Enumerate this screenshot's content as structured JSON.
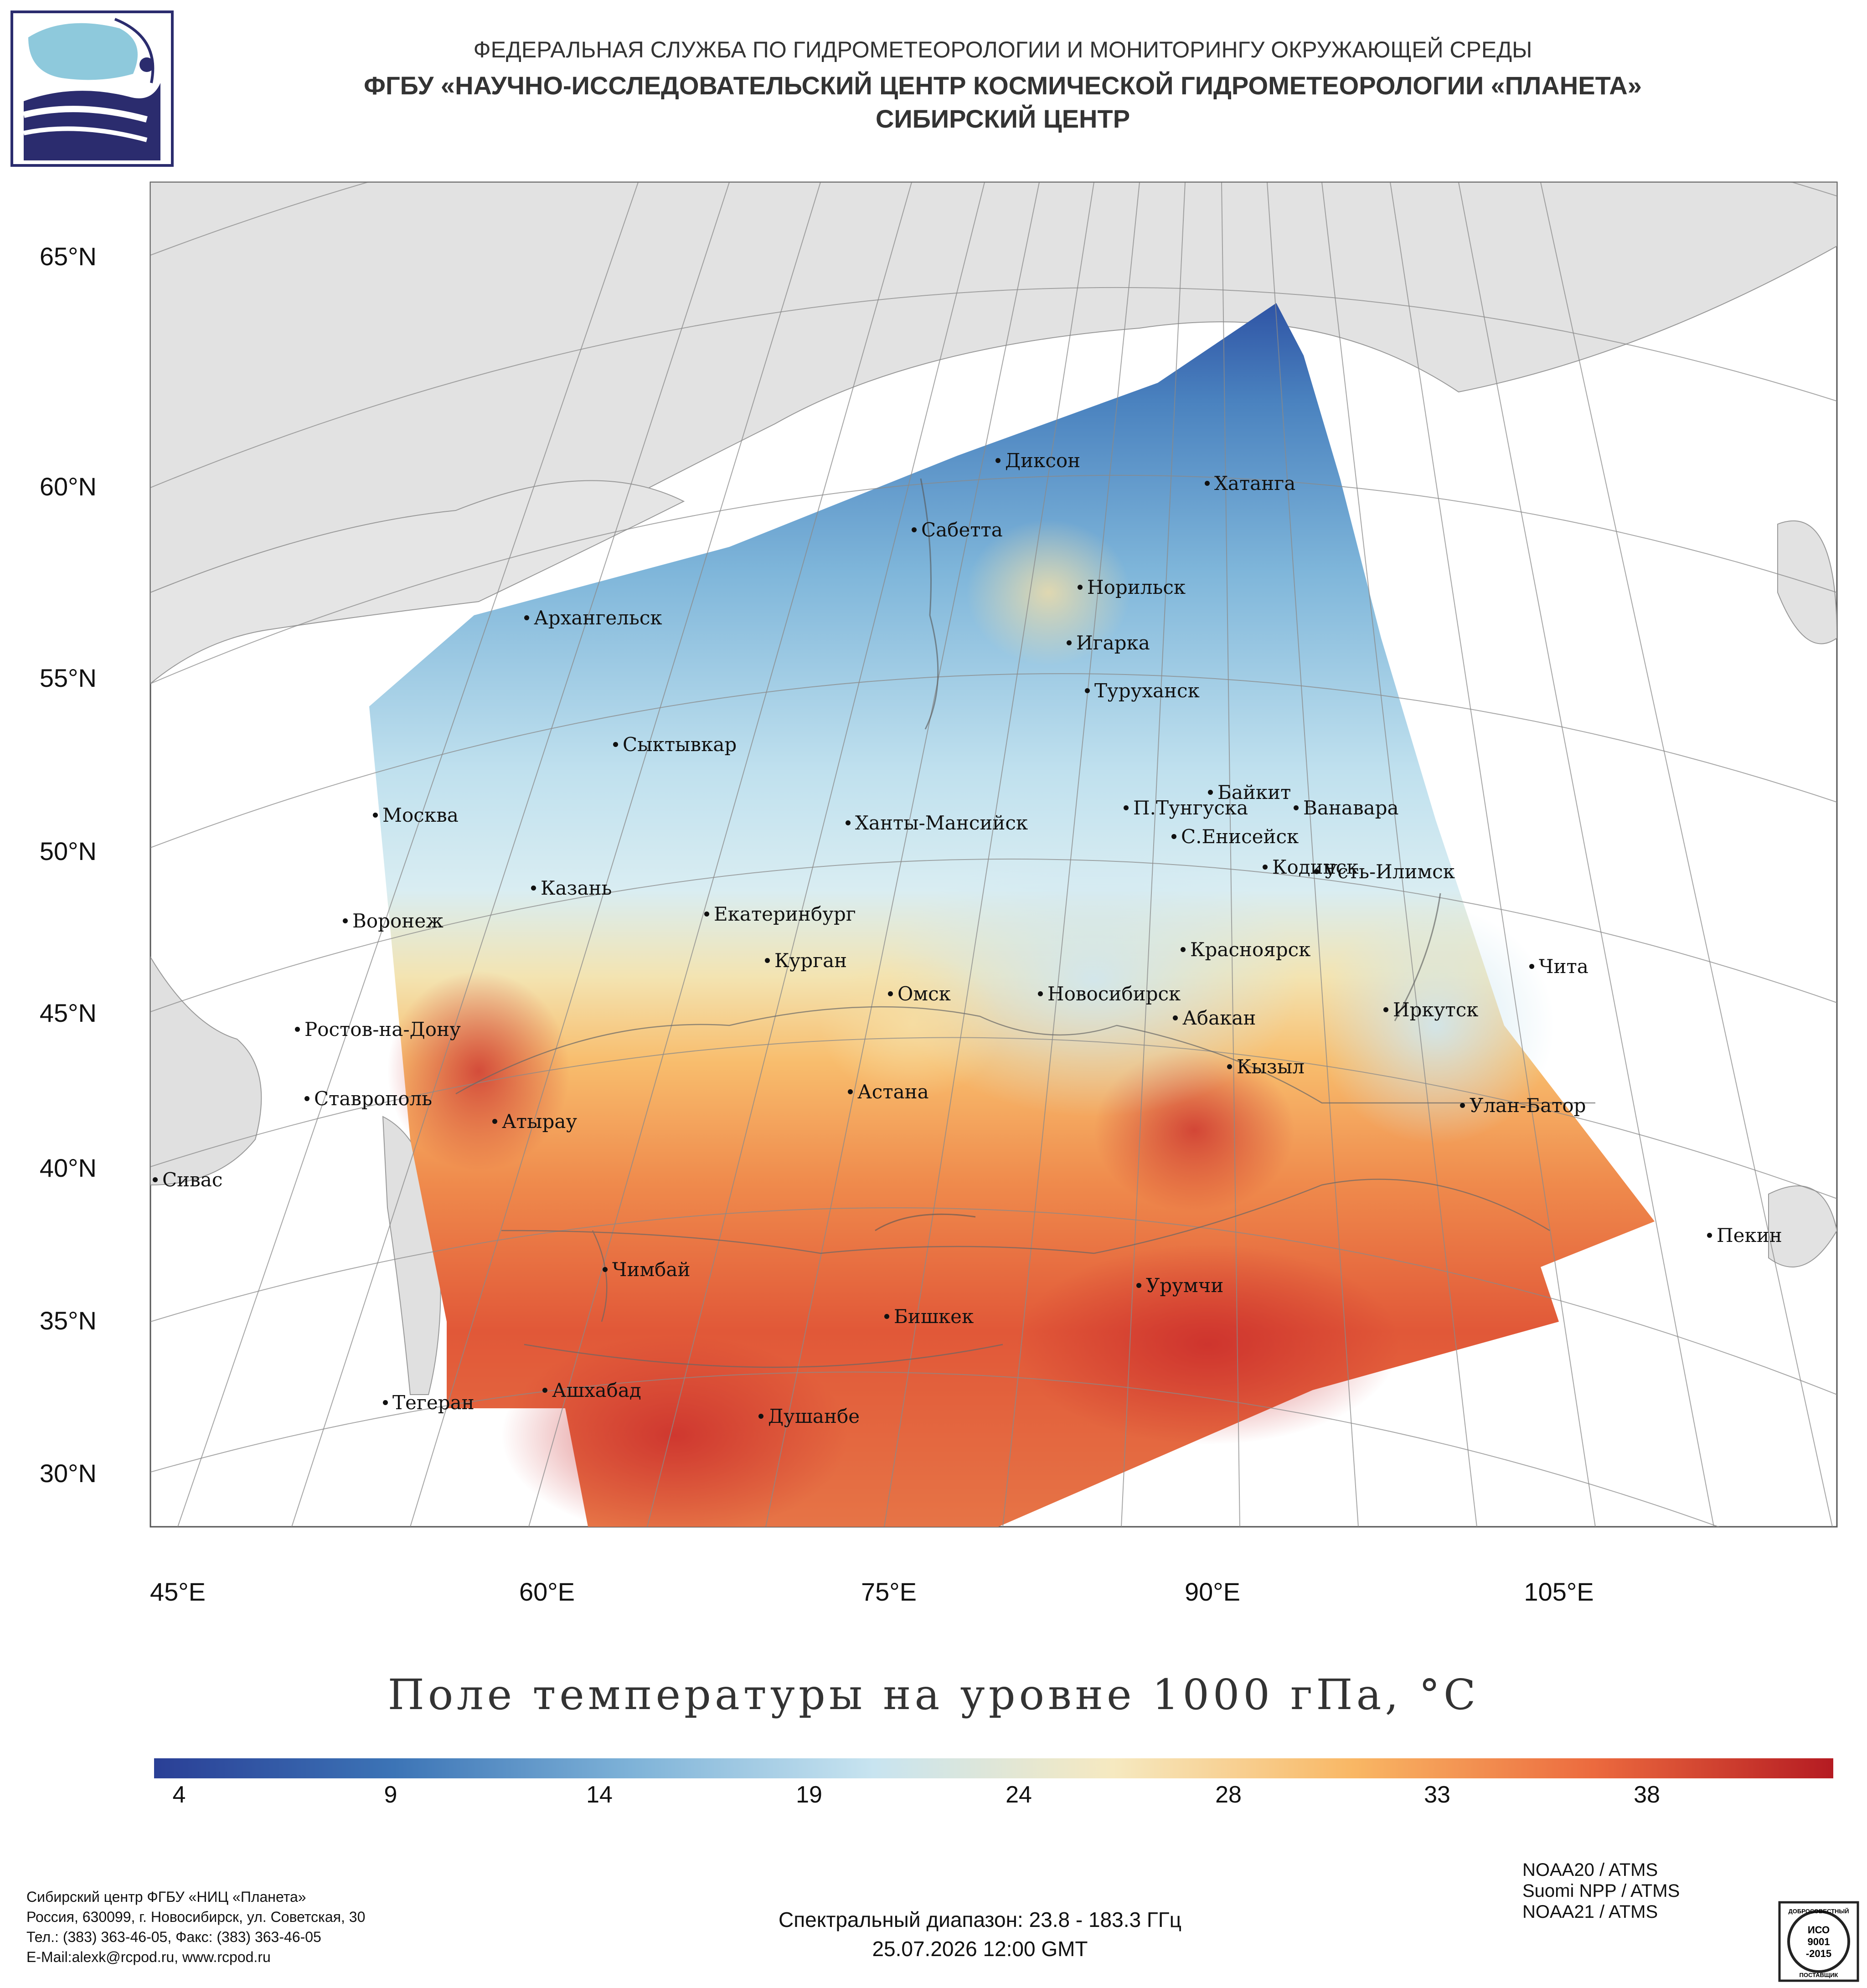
{
  "header": {
    "line1": "ФЕДЕРАЛЬНАЯ СЛУЖБА ПО ГИДРОМЕТЕОРОЛОГИИ И МОНИТОРИНГУ ОКРУЖАЮЩЕЙ СРЕДЫ",
    "line2": "ФГБУ «НАУЧНО-ИССЛЕДОВАТЕЛЬСКИЙ ЦЕНТР КОСМИЧЕСКОЙ ГИДРОМЕТЕОРОЛОГИИ «ПЛАНЕТА»",
    "line3": "СИБИРСКИЙ ЦЕНТР"
  },
  "map": {
    "lat_labels": [
      "65°N",
      "60°N",
      "55°N",
      "50°N",
      "45°N",
      "40°N",
      "35°N",
      "30°N"
    ],
    "lon_labels": [
      "45°E",
      "60°E",
      "75°E",
      "90°E",
      "105°E"
    ],
    "cities": [
      {
        "name": "Диксон"
      },
      {
        "name": "Хатанга"
      },
      {
        "name": "Сабетта"
      },
      {
        "name": "Норильск"
      },
      {
        "name": "Архангельск"
      },
      {
        "name": "Игарка"
      },
      {
        "name": "Туруханск"
      },
      {
        "name": "Сыктывкар"
      },
      {
        "name": "Байкит"
      },
      {
        "name": "П.Тунгуска"
      },
      {
        "name": "Ванавара"
      },
      {
        "name": "Москва"
      },
      {
        "name": "Ханты-Мансийск"
      },
      {
        "name": "С.Енисейск"
      },
      {
        "name": "Кодинск"
      },
      {
        "name": "Усть-Илимск"
      },
      {
        "name": "Казань"
      },
      {
        "name": "Екатеринбург"
      },
      {
        "name": "Воронеж"
      },
      {
        "name": "Красноярск"
      },
      {
        "name": "Курган"
      },
      {
        "name": "Чита"
      },
      {
        "name": "Омск"
      },
      {
        "name": "Новосибирск"
      },
      {
        "name": "Иркутск"
      },
      {
        "name": "Абакан"
      },
      {
        "name": "Ростов-на-Дону"
      },
      {
        "name": "Кызыл"
      },
      {
        "name": "Астана"
      },
      {
        "name": "Ставрополь"
      },
      {
        "name": "Улан-Батор"
      },
      {
        "name": "Атырау"
      },
      {
        "name": "Сивас"
      },
      {
        "name": "Пекин"
      },
      {
        "name": "Чимбай"
      },
      {
        "name": "Урумчи"
      },
      {
        "name": "Бишкек"
      },
      {
        "name": "Ашхабад"
      },
      {
        "name": "Тегеран"
      },
      {
        "name": "Душанбе"
      }
    ]
  },
  "chart_title": "Поле температуры на уровне 1000 гПа, °С",
  "colorbar": {
    "ticks": [
      "4",
      "9",
      "14",
      "19",
      "24",
      "28",
      "33",
      "38"
    ],
    "colors": [
      "#2a3f96",
      "#3c74b6",
      "#7fb3d8",
      "#c8e4f0",
      "#f6e9c0",
      "#f9b764",
      "#ec6a3e",
      "#b51b22"
    ]
  },
  "footer_left": {
    "line1": "Сибирский центр ФГБУ «НИЦ «Планета»",
    "line2": "Россия, 630099, г. Новосибирск, ул. Советская, 30",
    "line3": "Тел.: (383) 363-46-05, Факс: (383) 363-46-05",
    "line4": "E-Mail:alexk@rcpod.ru, www.rcpod.ru"
  },
  "footer_center": {
    "spectral": "Спектральный диапазон: 23.8 - 183.3 ГГц",
    "datetime": "25.07.2026 12:00 GMT"
  },
  "footer_right": {
    "sat1": "NOAA20 / ATMS",
    "sat2": "Suomi NPP / ATMS",
    "sat3": "NOAA21 / ATMS"
  },
  "iso_badge": {
    "top": "ДОБРОСОВЕСТНЫЙ",
    "mid1": "ИСО",
    "mid2": "9001",
    "mid3": "-2015",
    "bottom": "ПОСТАВЩИК"
  }
}
